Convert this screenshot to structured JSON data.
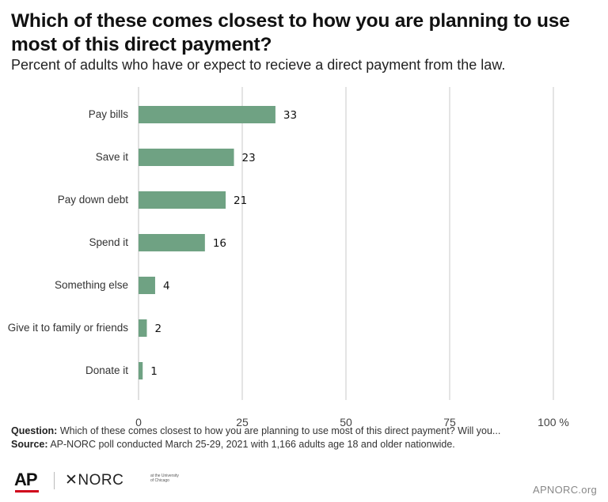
{
  "header": {
    "title": "Which of these comes closest to how you are planning to use most of this direct payment?",
    "subtitle": "Percent of adults who have or expect to recieve a direct payment from the law."
  },
  "chart_data": {
    "type": "bar",
    "orientation": "horizontal",
    "categories": [
      "Pay bills",
      "Save it",
      "Pay down debt",
      "Spend it",
      "Something else",
      "Give it to family or friends",
      "Donate it"
    ],
    "values": [
      33,
      23,
      21,
      16,
      4,
      2,
      1
    ],
    "xlim": [
      0,
      100
    ],
    "xticks": [
      "0",
      "25",
      "50",
      "75",
      "100 %"
    ],
    "grid": "vertical",
    "bar_color": "#6fa283"
  },
  "footnote": {
    "question_label": "Question:",
    "question_text": " Which of these comes closest to how you are planning to use most of this direct payment? Will you...",
    "source_label": "Source:",
    "source_text": " AP-NORC poll conducted March 25-29, 2021 with 1,166 adults age 18 and older nationwide."
  },
  "footer": {
    "ap_logo": "AP",
    "norc_logo": "✕NORC",
    "norc_small": "at the University of Chicago",
    "site": "APNORC.org"
  }
}
